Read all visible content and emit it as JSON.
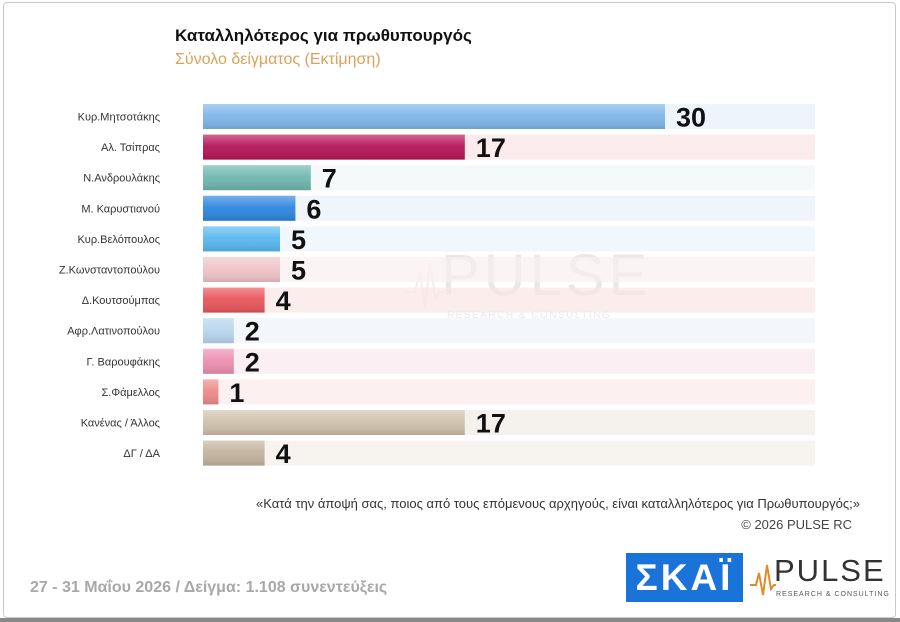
{
  "title": "Καταλληλότερος για πρωθυπουργός",
  "subtitle": "Σύνολο δείγματος  (Εκτίμηση)",
  "watermark": {
    "word": "PULSE",
    "sub": "RESEARCH & CONSULTING"
  },
  "question": "«Κατά την άποψή σας, ποιος από τους επόμενους αρχηγούς, είναι καταλληλότερος για Πρωθυπουργός;»",
  "copyright": "©  2026  PULSE RC",
  "footer_info": "27 - 31  Μαΐου 2026  /  Δείγμα:  1.108 συνεντεύξεις",
  "logos": {
    "skai": "ΣΚΑΪ",
    "pulse": "PULSE",
    "pulse_sub": "RESEARCH & CONSULTING"
  },
  "chart_data": {
    "type": "bar",
    "orientation": "horizontal",
    "categories": [
      "Κυρ.Μητσοτάκης",
      "Αλ. Τσίπρας",
      "Ν.Ανδρουλάκης",
      "Μ. Καρυστιανού",
      "Κυρ.Βελόπουλος",
      "Ζ.Κωνσταντοπούλου",
      "Δ.Κουτσούμπας",
      "Αφρ.Λατινοπούλου",
      "Γ. Βαρουφάκης",
      "Σ.Φάμελλος",
      "Κανένας / Άλλος",
      "ΔΓ / ΔΑ"
    ],
    "values": [
      30,
      17,
      7,
      6,
      5,
      5,
      4,
      2,
      2,
      1,
      17,
      4
    ],
    "bar_colors": [
      "#7fb6ea",
      "#b5165a",
      "#6fb8b0",
      "#2f86e0",
      "#5ab8f0",
      "#f1c4c8",
      "#e8565c",
      "#b8d6f0",
      "#ee8fb0",
      "#ee8a8a",
      "#cfc2ac",
      "#c4b49e"
    ],
    "row_shade_colors": [
      "#e7f0fa",
      "#fbe3e6",
      "#f1f6f6",
      "#eaf1fb",
      "#eaf4fc",
      "#fbeff0",
      "#fbe6e6",
      "#eef3fa",
      "#fbe8ee",
      "#fbeaea",
      "#f1ede6",
      "#f3efe9"
    ],
    "xlim": [
      0,
      40
    ],
    "grid": false,
    "legend": "none"
  }
}
